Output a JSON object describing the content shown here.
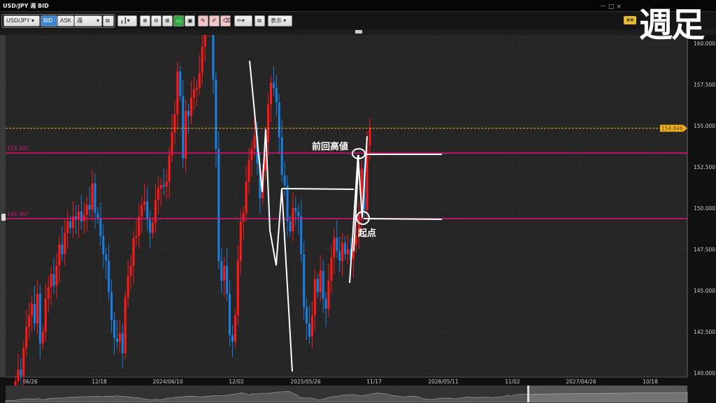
{
  "window": {
    "title": "USD/JPY 週 BID",
    "controls": "－ □ ×"
  },
  "overlay": {
    "label": "週足"
  },
  "toolbar": {
    "symbol": "USD/JPY ▾",
    "bid": "BID",
    "ask": "ASK",
    "period": "週",
    "period_arrow": "▾",
    "chart_type": "▾",
    "display": "表示 ▾"
  },
  "icons": [
    "link-icon",
    "candlestick-icon",
    "zoom-in-icon",
    "zoom-out-icon",
    "fit-icon",
    "scroll-icon",
    "window-icon",
    "add-drawing-icon",
    "edit-drawing-icon",
    "delete-drawing-icon",
    "pen-icon",
    "copy-icon"
  ],
  "colors": {
    "up": "#ff1a1a",
    "down": "#1a7fe0",
    "level": "#e0117a",
    "current": "#f0b020",
    "annotation": "#ffffff"
  },
  "chart_data": {
    "type": "candlestick",
    "symbol": "USD/JPY",
    "timeframe": "週",
    "ylim": [
      140,
      161
    ],
    "yticks": [
      "160.000",
      "157.500",
      "155.000",
      "152.500",
      "150.000",
      "147.500",
      "145.000",
      "142.500",
      "140.000"
    ],
    "ytick_values": [
      160,
      157.5,
      155,
      152.5,
      150,
      147.5,
      145,
      142.5,
      140
    ],
    "xticks": [
      "06/26",
      "12/18",
      "2024/06/10",
      "12/02",
      "2025/05/26",
      "11/17",
      "2026/05/11",
      "11/02",
      "2027/04/26",
      "10/18"
    ],
    "current_price": {
      "value": 154.846,
      "label": "154.846"
    },
    "levels": [
      {
        "value": 153.341,
        "label": "153.341"
      },
      {
        "value": 149.367,
        "label": "149.367"
      }
    ],
    "annotations": [
      {
        "text": "前回高値"
      },
      {
        "text": "起点"
      }
    ],
    "closes": [
      139.5,
      140.2,
      139.8,
      141.5,
      142.8,
      143.5,
      144.2,
      143.0,
      144.8,
      141.8,
      142.5,
      144.5,
      145.2,
      146.0,
      145.3,
      146.5,
      147.8,
      147.2,
      148.5,
      149.2,
      148.8,
      149.5,
      149.3,
      149.8,
      149.2,
      149.6,
      150.2,
      149.9,
      151.5,
      149.7,
      149.4,
      148.3,
      147.2,
      146.8,
      144.9,
      143.2,
      142.1,
      141.9,
      142.4,
      141.2,
      144.6,
      145.9,
      146.5,
      148.2,
      148.3,
      149.5,
      150.2,
      150.4,
      149.3,
      148.5,
      149.1,
      150.5,
      151.2,
      151.4,
      151.3,
      151.6,
      153.2,
      154.6,
      155.7,
      158.3,
      156.8,
      153.0,
      155.9,
      155.6,
      156.7,
      157.2,
      157.3,
      158.2,
      159.8,
      160.8,
      161.0,
      161.8,
      157.8,
      153.6,
      146.8,
      145.6,
      146.5,
      144.8,
      142.3,
      141.9,
      143.5,
      146.8,
      149.2,
      149.7,
      151.6,
      152.9,
      153.6,
      154.4,
      152.7,
      150.6,
      152.3,
      154.0,
      156.3,
      157.6,
      157.3,
      156.4,
      154.3,
      152.0,
      151.4,
      149.2,
      148.6,
      150.0,
      149.8,
      149.5,
      147.2,
      144.0,
      143.0,
      142.2,
      143.5,
      145.7,
      144.9,
      146.2,
      144.5,
      143.9,
      145.6,
      147.0,
      148.2,
      147.4,
      146.8,
      147.9,
      147.2,
      147.5,
      146.9,
      147.8,
      148.3,
      149.6,
      152.4,
      149.9,
      153.8,
      154.846
    ]
  }
}
